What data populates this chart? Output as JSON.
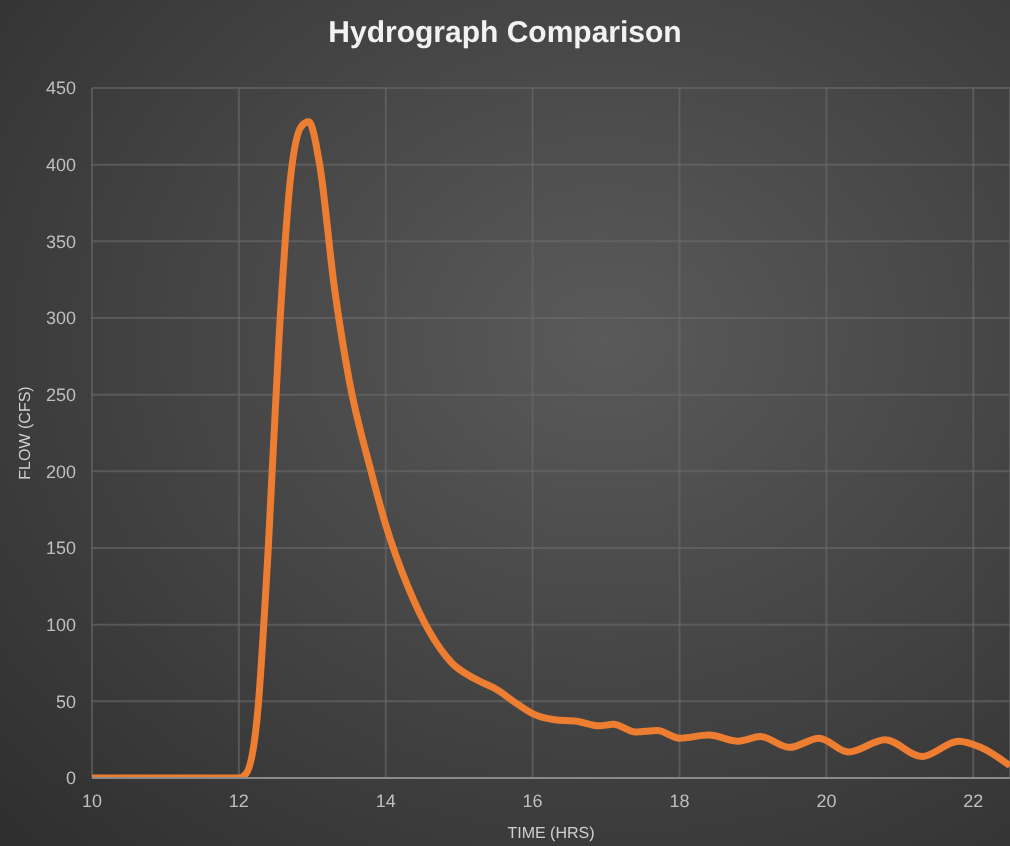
{
  "chart_data": {
    "type": "line",
    "title": "Hydrograph Comparison",
    "xlabel": "TIME (HRS)",
    "ylabel": "FLOW (CFS)",
    "x": [
      10,
      11,
      12,
      12.1,
      12.25,
      12.4,
      12.55,
      12.7,
      12.85,
      12.95,
      13.1,
      13.3,
      13.5,
      13.8,
      14,
      14.3,
      14.6,
      14.9,
      15.2,
      15.5,
      15.8,
      16,
      16.3,
      16.6,
      16.9,
      17.1,
      17.4,
      17.7,
      18,
      18.4,
      18.8,
      19.1,
      19.5,
      19.9,
      20.3,
      20.8,
      21.3,
      21.8,
      22.1,
      22.5
    ],
    "series": [
      {
        "color": "#ed7d31",
        "values": [
          0,
          0,
          0,
          3,
          40,
          150,
          290,
          390,
          425,
          428,
          400,
          320,
          260,
          200,
          165,
          125,
          95,
          75,
          65,
          58,
          48,
          42,
          38,
          37,
          34,
          35,
          30,
          31,
          26,
          28,
          24,
          27,
          20,
          26,
          17,
          25,
          14,
          24,
          20,
          8
        ]
      }
    ],
    "xlim": [
      10,
      22.5
    ],
    "xticks": [
      10,
      12,
      14,
      16,
      18,
      20,
      22
    ],
    "ylim": [
      0,
      450
    ],
    "yticks": [
      0,
      50,
      100,
      150,
      200,
      250,
      300,
      350,
      400,
      450
    ],
    "grid": true,
    "legend": false,
    "marker": "none",
    "line_style": "solid"
  }
}
